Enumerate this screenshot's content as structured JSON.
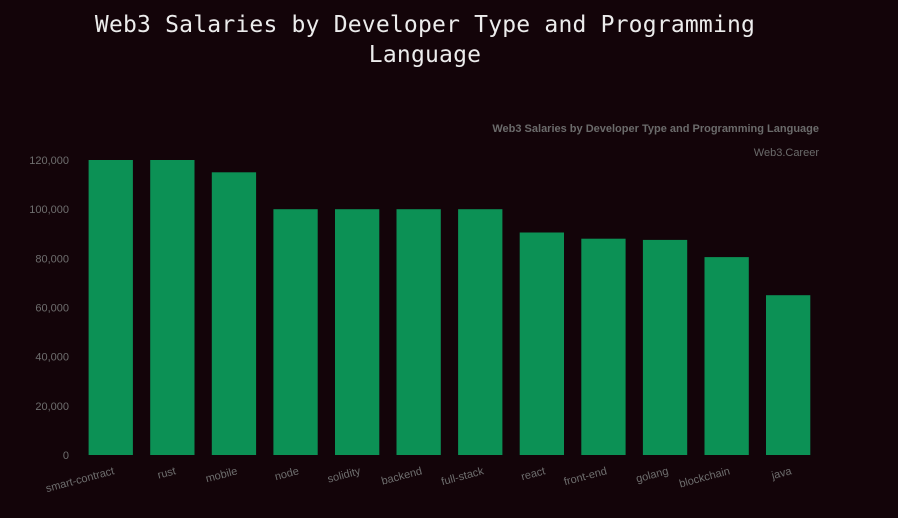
{
  "header": {
    "title_line1": "Web3 Salaries by Developer Type and Programming",
    "title_line2": "Language"
  },
  "chart_data": {
    "type": "bar",
    "title": "Web3 Salaries by Developer Type and Programming Language",
    "subtitle": "Web3.Career",
    "categories": [
      "smart-contract",
      "rust",
      "mobile",
      "node",
      "solidity",
      "backend",
      "full-stack",
      "react",
      "front-end",
      "golang",
      "blockchain",
      "java"
    ],
    "values": [
      120000,
      120000,
      115000,
      100000,
      100000,
      100000,
      100000,
      90500,
      88000,
      87500,
      80500,
      65000
    ],
    "yticks": [
      "0",
      "20,000",
      "40,000",
      "60,000",
      "80,000",
      "100,000",
      "120,000"
    ],
    "ylim": [
      0,
      120000
    ],
    "grid": false,
    "colors": {
      "bar": "#0c9155"
    }
  }
}
